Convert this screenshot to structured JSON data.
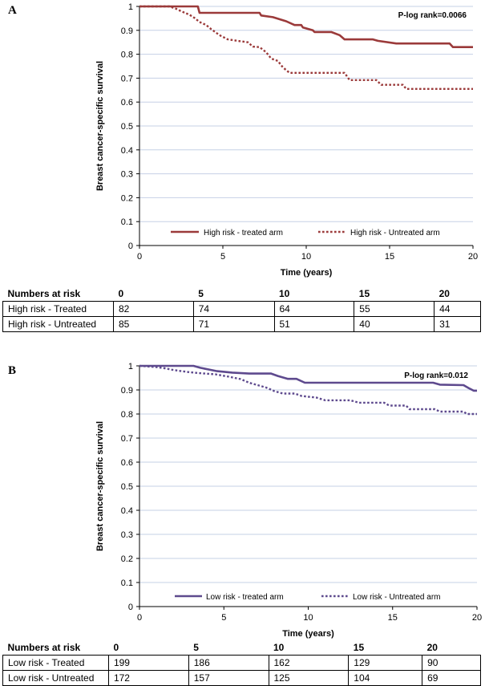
{
  "colors": {
    "panel_a": "#9b3a3a",
    "panel_b": "#5e4a8e",
    "gridline": "#c6d0e6"
  },
  "chart_data": [
    {
      "type": "line",
      "panel_label": "A",
      "xlabel": "Time (years)",
      "ylabel": "Breast cancer-specific survival",
      "xlim": [
        0,
        20
      ],
      "ylim": [
        0,
        1
      ],
      "x_ticks": [
        "0",
        "5",
        "10",
        "15",
        "20"
      ],
      "y_ticks": [
        "0",
        "0.1",
        "0.2",
        "0.3",
        "0.4",
        "0.5",
        "0.6",
        "0.7",
        "0.8",
        "0.9",
        "1"
      ],
      "grid": true,
      "annotation": "P-log rank=0.0066",
      "legend_position": "bottom",
      "series": [
        {
          "name": "High risk - treated arm",
          "style": "solid",
          "points": [
            [
              0,
              1
            ],
            [
              3.5,
              1
            ],
            [
              3.6,
              0.973
            ],
            [
              7.2,
              0.973
            ],
            [
              7.3,
              0.962
            ],
            [
              8.0,
              0.955
            ],
            [
              8.8,
              0.938
            ],
            [
              9.3,
              0.922
            ],
            [
              9.7,
              0.922
            ],
            [
              9.8,
              0.912
            ],
            [
              10.4,
              0.9
            ],
            [
              10.5,
              0.893
            ],
            [
              11.5,
              0.893
            ],
            [
              12.0,
              0.88
            ],
            [
              12.3,
              0.862
            ],
            [
              14.0,
              0.862
            ],
            [
              14.3,
              0.856
            ],
            [
              15.4,
              0.845
            ],
            [
              18.6,
              0.845
            ],
            [
              18.8,
              0.83
            ],
            [
              20,
              0.83
            ]
          ]
        },
        {
          "name": "High risk - Untreated arm",
          "style": "dotted",
          "points": [
            [
              0,
              1
            ],
            [
              1.8,
              1
            ],
            [
              2.2,
              0.99
            ],
            [
              2.5,
              0.98
            ],
            [
              3.0,
              0.965
            ],
            [
              3.3,
              0.952
            ],
            [
              3.6,
              0.935
            ],
            [
              4.0,
              0.922
            ],
            [
              4.3,
              0.905
            ],
            [
              4.8,
              0.88
            ],
            [
              5.3,
              0.862
            ],
            [
              6.5,
              0.85
            ],
            [
              6.8,
              0.832
            ],
            [
              7.2,
              0.83
            ],
            [
              7.6,
              0.808
            ],
            [
              7.9,
              0.782
            ],
            [
              8.3,
              0.772
            ],
            [
              8.6,
              0.745
            ],
            [
              9.0,
              0.722
            ],
            [
              12.3,
              0.722
            ],
            [
              12.6,
              0.692
            ],
            [
              14.2,
              0.692
            ],
            [
              14.5,
              0.672
            ],
            [
              15.8,
              0.672
            ],
            [
              16.0,
              0.655
            ],
            [
              20,
              0.655
            ]
          ]
        }
      ]
    },
    {
      "type": "line",
      "panel_label": "B",
      "xlabel": "Time (years)",
      "ylabel": "Breast cancer-specific survival",
      "xlim": [
        0,
        20
      ],
      "ylim": [
        0,
        1
      ],
      "x_ticks": [
        "0",
        "5",
        "10",
        "15",
        "20"
      ],
      "y_ticks": [
        "0",
        "0.1",
        "0.2",
        "0.3",
        "0.4",
        "0.5",
        "0.6",
        "0.7",
        "0.8",
        "0.9",
        "1"
      ],
      "grid": true,
      "annotation": "P-log rank=0.012",
      "legend_position": "bottom",
      "series": [
        {
          "name": "Low risk - treated arm",
          "style": "solid",
          "points": [
            [
              0,
              1
            ],
            [
              3.2,
              1
            ],
            [
              3.6,
              0.992
            ],
            [
              4.1,
              0.985
            ],
            [
              4.6,
              0.978
            ],
            [
              5.5,
              0.972
            ],
            [
              6.5,
              0.968
            ],
            [
              7.8,
              0.968
            ],
            [
              8.2,
              0.958
            ],
            [
              8.8,
              0.946
            ],
            [
              9.3,
              0.946
            ],
            [
              9.8,
              0.93
            ],
            [
              17.4,
              0.93
            ],
            [
              17.8,
              0.922
            ],
            [
              19.2,
              0.92
            ],
            [
              19.5,
              0.908
            ],
            [
              19.8,
              0.897
            ],
            [
              20,
              0.897
            ]
          ]
        },
        {
          "name": "Low risk - Untreated arm",
          "style": "dotted",
          "points": [
            [
              0,
              1
            ],
            [
              1.0,
              0.995
            ],
            [
              1.5,
              0.99
            ],
            [
              2.0,
              0.983
            ],
            [
              2.8,
              0.975
            ],
            [
              3.5,
              0.97
            ],
            [
              4.5,
              0.965
            ],
            [
              5.3,
              0.955
            ],
            [
              6.0,
              0.945
            ],
            [
              6.5,
              0.93
            ],
            [
              7.0,
              0.92
            ],
            [
              7.5,
              0.91
            ],
            [
              8.0,
              0.895
            ],
            [
              8.5,
              0.885
            ],
            [
              9.2,
              0.885
            ],
            [
              9.6,
              0.875
            ],
            [
              10.5,
              0.868
            ],
            [
              11.0,
              0.857
            ],
            [
              12.5,
              0.857
            ],
            [
              13.0,
              0.847
            ],
            [
              14.5,
              0.847
            ],
            [
              14.8,
              0.835
            ],
            [
              15.8,
              0.835
            ],
            [
              16.0,
              0.82
            ],
            [
              17.5,
              0.82
            ],
            [
              17.8,
              0.81
            ],
            [
              19.2,
              0.81
            ],
            [
              19.4,
              0.8
            ],
            [
              20,
              0.8
            ]
          ]
        }
      ]
    }
  ],
  "risk_tables": [
    {
      "header": [
        "Numbers at risk",
        "0",
        "5",
        "10",
        "15",
        "20"
      ],
      "rows": [
        [
          "High risk - Treated",
          "82",
          "74",
          "64",
          "55",
          "44"
        ],
        [
          "High risk - Untreated",
          "85",
          "71",
          "51",
          "40",
          "31"
        ]
      ]
    },
    {
      "header": [
        "Numbers at risk",
        "0",
        "5",
        "10",
        "15",
        "20"
      ],
      "rows": [
        [
          "Low risk - Treated",
          "199",
          "186",
          "162",
          "129",
          "90"
        ],
        [
          "Low risk - Untreated",
          "172",
          "157",
          "125",
          "104",
          "69"
        ]
      ]
    }
  ]
}
